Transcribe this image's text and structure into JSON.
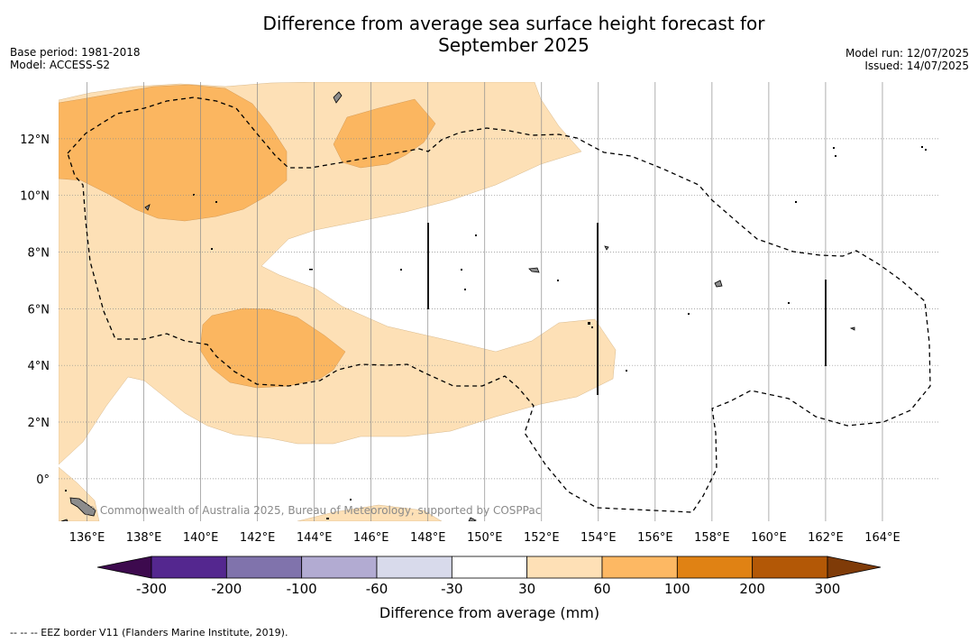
{
  "title_line1": "Difference from average sea surface height forecast for",
  "title_line2": "September 2025",
  "meta_left": [
    "Base period: 1981-2018",
    "Model: ACCESS-S2"
  ],
  "meta_right": [
    "Model run: 12/07/2025",
    "Issued: 14/07/2025"
  ],
  "map": {
    "lon_range": [
      135,
      166
    ],
    "lat_range": [
      -1.5,
      14
    ],
    "lon_ticks": [
      "136°E",
      "138°E",
      "140°E",
      "142°E",
      "144°E",
      "146°E",
      "148°E",
      "150°E",
      "152°E",
      "154°E",
      "156°E",
      "158°E",
      "160°E",
      "162°E",
      "164°E"
    ],
    "lat_ticks": [
      "12°N",
      "10°N",
      "8°N",
      "6°N",
      "4°N",
      "2°N",
      "0°"
    ],
    "copyright": "© Commonwealth of Australia 2025, Bureau of Meteorology, supported by COSPPac",
    "colors": {
      "light_orange": "#fde0b6",
      "mid_orange": "#fbb660",
      "land": "#8c8c8c",
      "grid": "#8c8c8c"
    }
  },
  "colorbar": {
    "label": "Difference from average (mm)",
    "ticks": [
      "-300",
      "-200",
      "-100",
      "-60",
      "-30",
      "30",
      "60",
      "100",
      "200",
      "300"
    ],
    "colors": [
      "#3d0a4e",
      "#54278f",
      "#8073ac",
      "#b2abd2",
      "#d8daeb",
      "#ffffff",
      "#fee0b6",
      "#fdb863",
      "#e08214",
      "#b35806",
      "#7f3b08"
    ]
  },
  "footnote": "-- -- -- EEZ border V11 (Flanders Marine Institute, 2019)."
}
